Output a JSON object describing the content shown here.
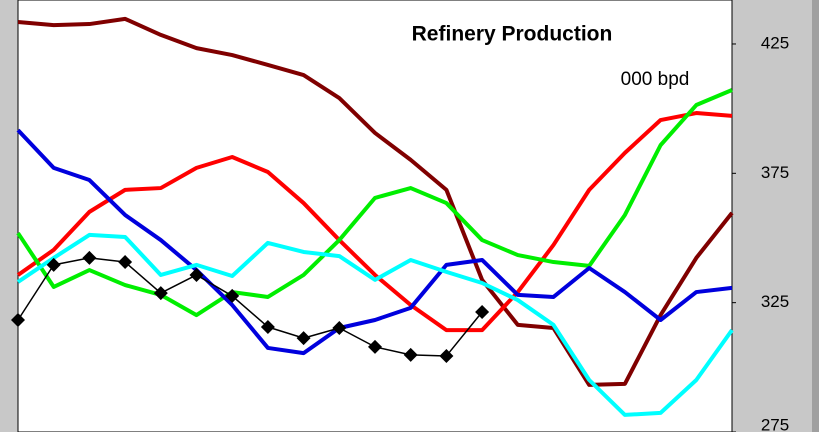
{
  "chart_data": {
    "type": "line",
    "title": "Refinery Production",
    "subtitle": "000 bpd",
    "categories": [
      null,
      null,
      null,
      null,
      null,
      null,
      null,
      null,
      null,
      null,
      null,
      null,
      null,
      null,
      null,
      null,
      null,
      null,
      null,
      null,
      null
    ],
    "series": [
      {
        "color": "#800000",
        "values": [
          433.5,
          432.3,
          432.7,
          434.7,
          428.5,
          423.4,
          420.7,
          416.9,
          413,
          404.1,
          390.6,
          380.2,
          368.6,
          333.8,
          316.4,
          315.2,
          293.2,
          293.6,
          320.2,
          342.3,
          359.7
        ]
      },
      {
        "color": "#ff0000",
        "values": [
          335.7,
          345.4,
          360.1,
          368.6,
          369.3,
          377.1,
          381.3,
          375.5,
          363.5,
          349.2,
          335.7,
          324.1,
          314.4,
          314.4,
          329.1,
          347.3,
          368.6,
          382.9,
          395.6,
          398.3,
          397.2
        ]
      },
      {
        "color": "#00ee00",
        "values": [
          351.9,
          331.1,
          337.6,
          331.8,
          328,
          320.2,
          329.1,
          327.2,
          335.7,
          349.2,
          365.5,
          369.3,
          363.5,
          349.2,
          343.4,
          340.7,
          339.2,
          358.9,
          385.9,
          401.4,
          407.2
        ]
      },
      {
        "color": "#0000dd",
        "values": [
          391.7,
          377.1,
          372.4,
          358.9,
          349.2,
          337.6,
          324.1,
          307.5,
          305.5,
          315.2,
          318.3,
          323,
          339.6,
          341.5,
          328,
          327.2,
          338.4,
          329.1,
          318.3,
          329.1,
          330.7
        ]
      },
      {
        "color": "#00ffff",
        "values": [
          333,
          342.3,
          351.2,
          350.4,
          335.7,
          339.6,
          335.3,
          348.1,
          344.6,
          343,
          333.8,
          341.5,
          336.9,
          332.6,
          326,
          316.4,
          295.1,
          281.6,
          282.4,
          295.1,
          314.4
        ]
      },
      {
        "color": "#000000",
        "marker": "diamond",
        "values": [
          318.3,
          339.6,
          342.3,
          340.7,
          328.7,
          335.7,
          327.6,
          315.6,
          311.3,
          315.2,
          307.9,
          304.8,
          304.4,
          321.4,
          null,
          null,
          null,
          null,
          null,
          null,
          null
        ]
      }
    ],
    "ylim": [
      275,
      442
    ],
    "yticks": [
      275,
      325,
      375,
      425
    ],
    "y_axis_side": "right"
  }
}
